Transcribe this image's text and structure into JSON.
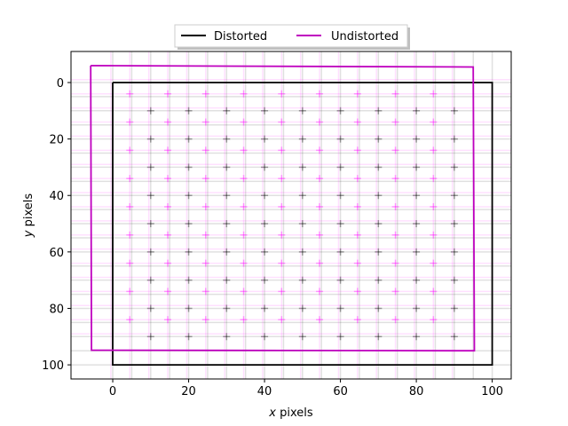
{
  "chart_data": {
    "type": "line",
    "xlabel_var": "x",
    "xlabel_rest": " pixels",
    "ylabel_var": "y",
    "ylabel_rest": " pixels",
    "xlim": [
      -11,
      105
    ],
    "ylim": [
      105,
      -11
    ],
    "y_inverted": true,
    "xticks": [
      0,
      20,
      40,
      60,
      80,
      100
    ],
    "yticks": [
      0,
      20,
      40,
      60,
      80,
      100
    ],
    "grid": false,
    "legend": {
      "placement": "top-center-outside",
      "ncol": 2
    },
    "series": [
      {
        "name": "Distorted",
        "color": "#000000",
        "x": [
          0,
          100,
          100,
          0,
          0
        ],
        "y": [
          0,
          0,
          100,
          100,
          0
        ]
      },
      {
        "name": "Undistorted",
        "color": "#bf00bf",
        "x": [
          -5.8,
          95.0,
          95.3,
          -5.6,
          -5.8
        ],
        "y": [
          -6,
          -5.5,
          95,
          94.8,
          -6
        ]
      }
    ],
    "distorted_grid": {
      "color": "#000000",
      "x": [
        0,
        5,
        10,
        15,
        20,
        25,
        30,
        35,
        40,
        45,
        50,
        55,
        60,
        65,
        70,
        75,
        80,
        85,
        90,
        95,
        100
      ],
      "y": [
        0,
        5,
        10,
        15,
        20,
        25,
        30,
        35,
        40,
        45,
        50,
        55,
        60,
        65,
        70,
        75,
        80,
        85,
        90,
        95,
        100
      ],
      "marker_x": [
        10,
        20,
        30,
        40,
        50,
        60,
        70,
        80,
        90
      ],
      "marker_y": [
        10,
        20,
        30,
        40,
        50,
        60,
        70,
        80,
        90
      ]
    },
    "undistorted_grid": {
      "color": "#ff00ff",
      "x": [
        -0.5,
        4.5,
        9.5,
        14.5,
        19.5,
        24.5,
        29.5,
        34.5,
        39.5,
        44.5,
        49.5,
        54.5,
        59.5,
        64.5,
        69.5,
        74.5,
        79.5,
        84.5,
        89.5
      ],
      "y": [
        -1,
        4,
        9,
        14,
        19,
        24,
        29,
        34,
        39,
        44,
        49,
        54,
        59,
        64,
        69,
        74,
        79,
        84,
        89
      ],
      "marker_x": [
        4.5,
        14.5,
        24.5,
        34.5,
        44.5,
        54.5,
        64.5,
        74.5,
        84.5
      ],
      "marker_y": [
        4,
        14,
        24,
        34,
        44,
        54,
        64,
        74,
        84
      ]
    }
  }
}
